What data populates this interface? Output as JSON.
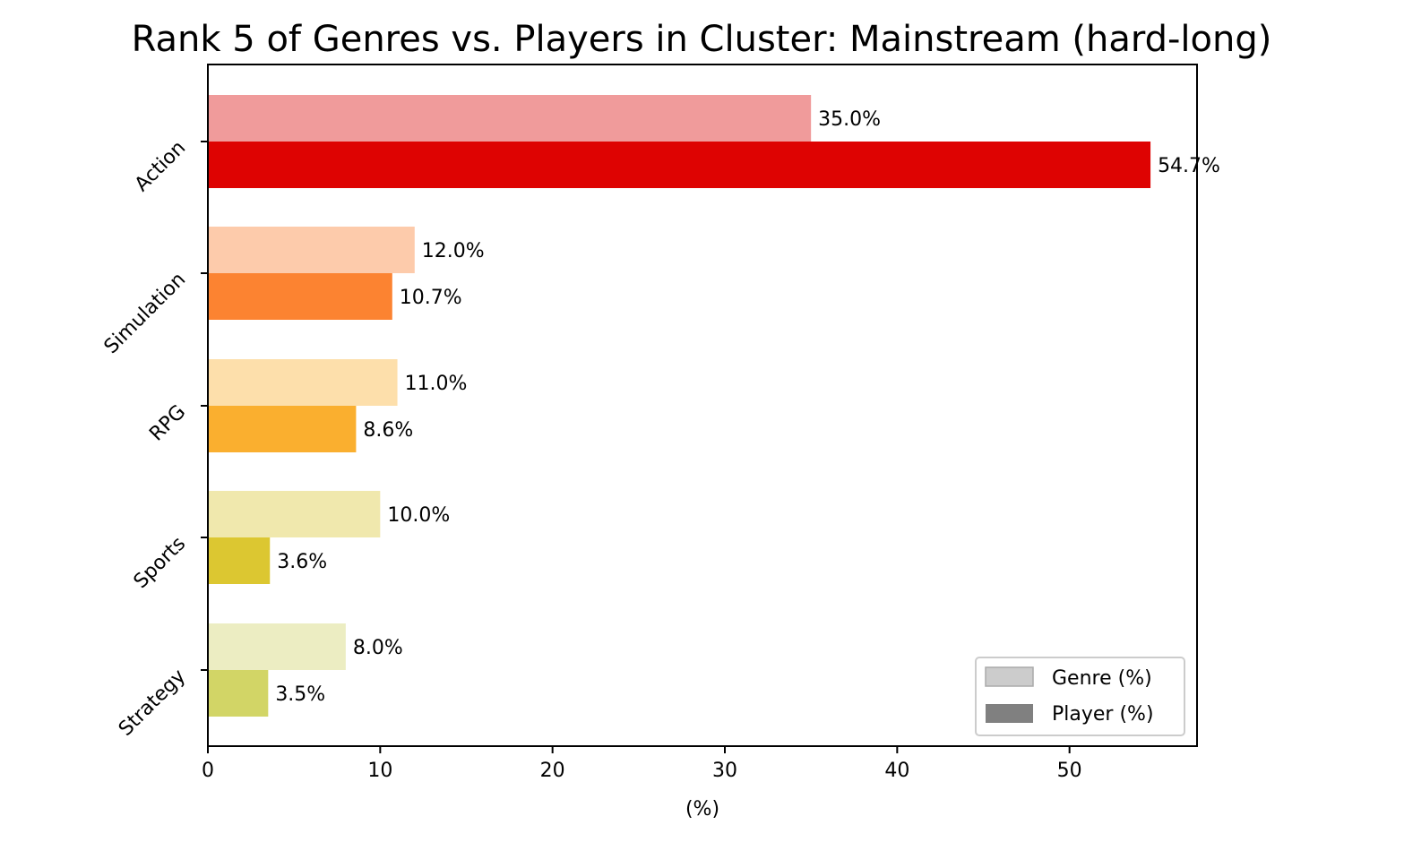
{
  "chart_data": {
    "type": "bar",
    "orientation": "horizontal",
    "title": "Rank 5 of Genres vs. Players in Cluster: Mainstream (hard-long)",
    "xlabel": "(%)",
    "ylabel": "",
    "xlim": [
      0,
      57.4
    ],
    "x_ticks": [
      0,
      10,
      20,
      30,
      40,
      50
    ],
    "categories": [
      "Action",
      "Simulation",
      "RPG",
      "Sports",
      "Strategy"
    ],
    "series": [
      {
        "name": "Genre (%)",
        "values": [
          35.0,
          12.0,
          11.0,
          10.0,
          8.0
        ],
        "labels": [
          "35.0%",
          "12.0%",
          "11.0%",
          "10.0%",
          "8.0%"
        ],
        "colors": [
          "#f09b9b",
          "#fdcbab",
          "#fddfab",
          "#f0e8ad",
          "#ecedc2"
        ]
      },
      {
        "name": "Player (%)",
        "values": [
          54.7,
          10.7,
          8.6,
          3.6,
          3.5
        ],
        "labels": [
          "54.7%",
          "10.7%",
          "8.6%",
          "3.6%",
          "3.5%"
        ],
        "colors": [
          "#de0302",
          "#fc8331",
          "#faaf2f",
          "#dcc731",
          "#d2d566"
        ]
      }
    ],
    "grid": false,
    "legend": {
      "placement": "lower-right",
      "entries": [
        {
          "label": "Genre (%)",
          "color": "#cccccc"
        },
        {
          "label": "Player (%)",
          "color": "#808080"
        }
      ]
    }
  }
}
